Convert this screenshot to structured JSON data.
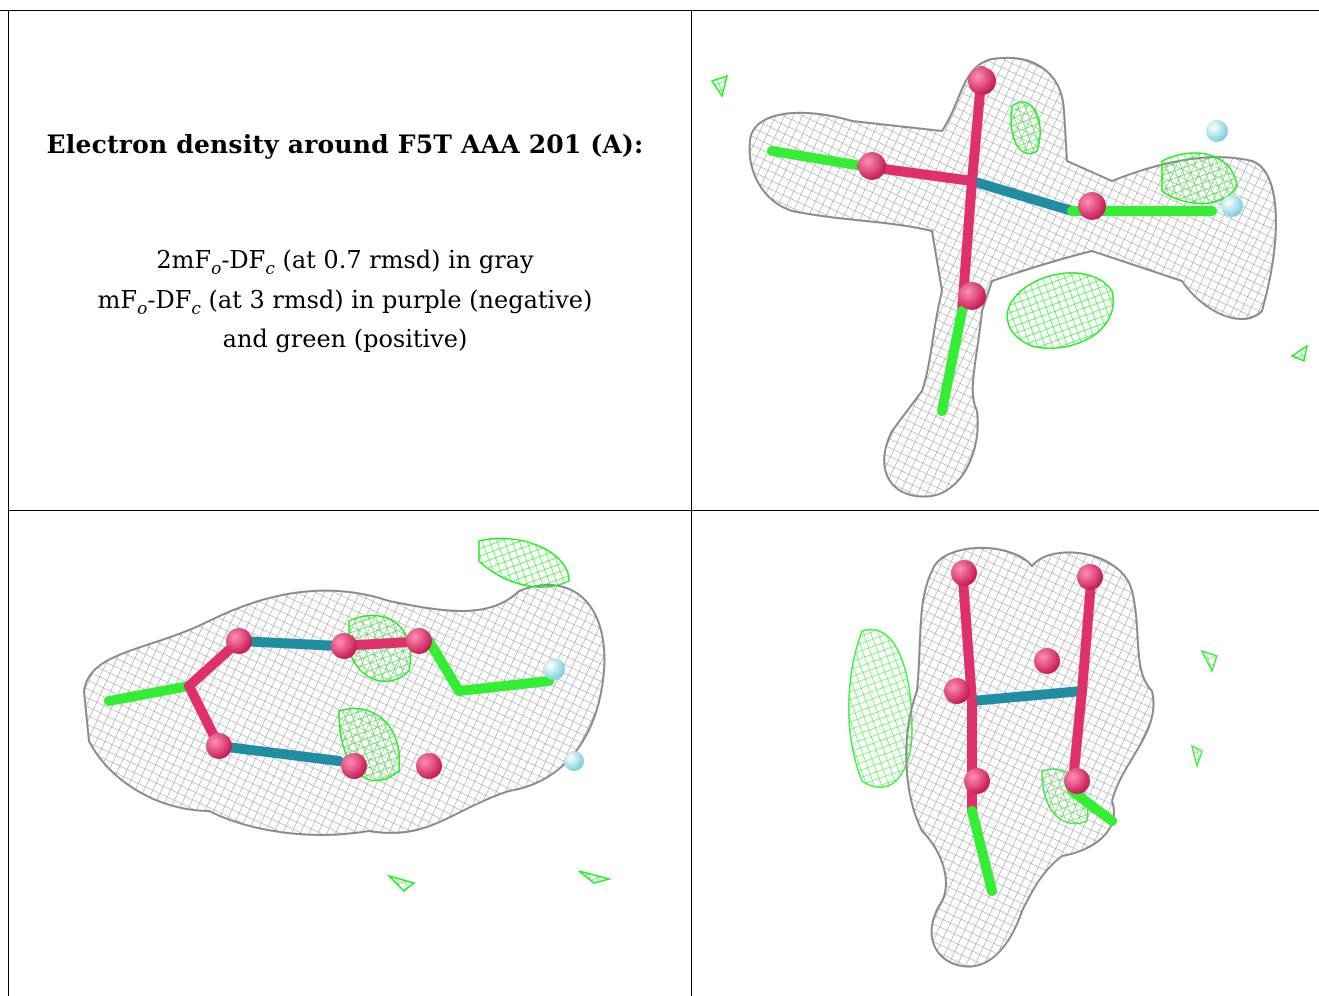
{
  "caption": {
    "title": "Electron density around F5T AAA 201 (A):",
    "line1": {
      "a": "2mF",
      "o": "o",
      "b": "-DF",
      "c": "c",
      "d": " (at 0.7 rmsd) in gray"
    },
    "line2": {
      "a": "mF",
      "o": "o",
      "b": "-DF",
      "c": "c",
      "d": " (at 3 rmsd) in purple (negative)"
    },
    "line3": "and green (positive)"
  },
  "colors": {
    "mesh_gray": "#9a9a9a",
    "mesh_green": "#22ee22",
    "atom_carbon": "#33ee33",
    "atom_oxygen": "#e0306a",
    "atom_phosphorus": "#1f8ea0",
    "atom_fluorine": "#a8e6f0"
  }
}
